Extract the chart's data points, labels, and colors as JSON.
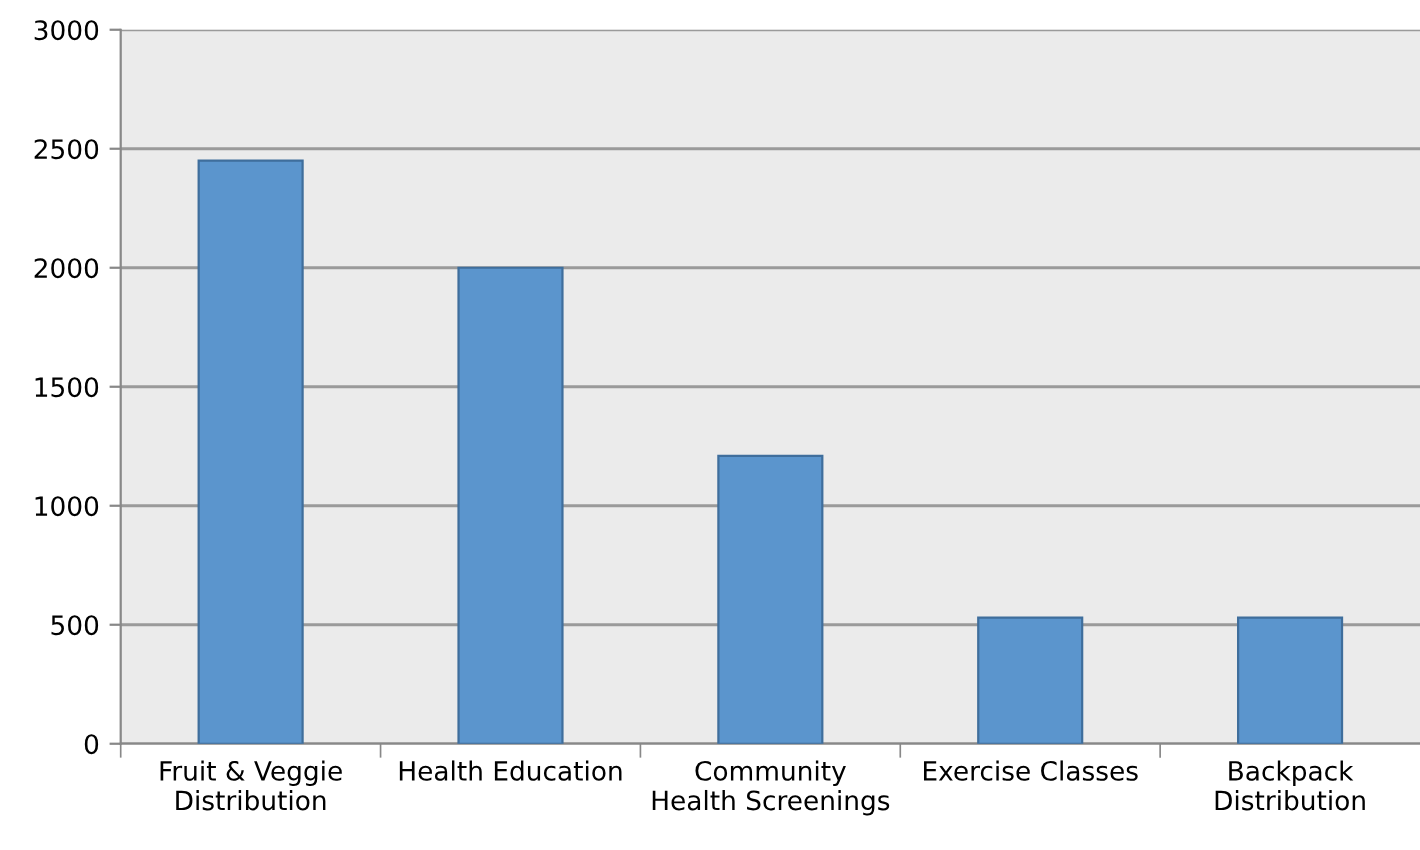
{
  "chart_data": {
    "type": "bar",
    "categories": [
      "Fruit & Veggie\nDistribution",
      "Health Education",
      "Community\nHealth Screenings",
      "Exercise Classes",
      "Backpack\nDistribution"
    ],
    "values": [
      2450,
      2000,
      1210,
      530,
      530
    ],
    "color": "#5b95cd",
    "ylim": [
      0,
      3000
    ],
    "yticks": [
      0,
      500,
      1000,
      1500,
      2000,
      2500,
      3000
    ],
    "grid": "y"
  }
}
